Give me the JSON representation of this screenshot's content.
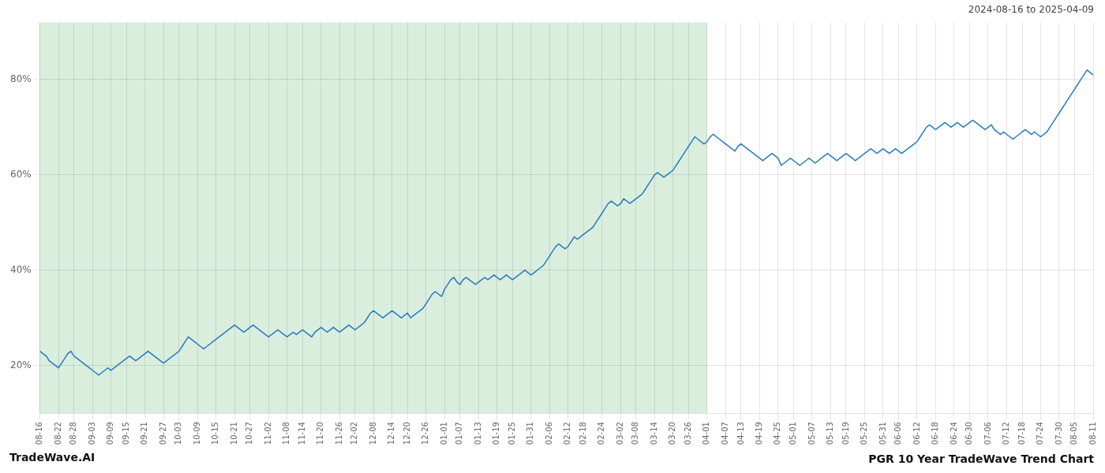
{
  "chart_data": {
    "type": "line",
    "title": "PGR 10 Year TradeWave Trend Chart",
    "subtitle": "2024-08-16 to 2025-04-09",
    "annotations": [
      "TradeWave.AI"
    ],
    "color": "#2a7abf",
    "grid": true,
    "ylim": [
      10,
      92
    ],
    "yticks": [
      {
        "value": 20,
        "label": "20%"
      },
      {
        "value": 40,
        "label": "40%"
      },
      {
        "value": 60,
        "label": "60%"
      },
      {
        "value": 80,
        "label": "80%"
      }
    ],
    "shaded_region": {
      "from": "08-16",
      "to": "04-01",
      "color": "#daeede"
    },
    "categories": [
      "08-16",
      null,
      null,
      null,
      null,
      null,
      "08-22",
      null,
      null,
      null,
      null,
      "08-28",
      null,
      null,
      null,
      null,
      null,
      "09-03",
      null,
      null,
      null,
      null,
      null,
      "09-09",
      null,
      null,
      null,
      null,
      "09-15",
      null,
      null,
      null,
      null,
      null,
      "09-21",
      null,
      null,
      null,
      null,
      null,
      "09-27",
      null,
      null,
      null,
      null,
      "10-03",
      null,
      null,
      null,
      null,
      null,
      "10-09",
      null,
      null,
      null,
      null,
      null,
      "10-15",
      null,
      null,
      null,
      null,
      null,
      "10-21",
      null,
      null,
      null,
      null,
      "10-27",
      null,
      null,
      null,
      null,
      null,
      "11-02",
      null,
      null,
      null,
      null,
      null,
      "11-08",
      null,
      null,
      null,
      null,
      "11-14",
      null,
      null,
      null,
      null,
      null,
      "11-20",
      null,
      null,
      null,
      null,
      null,
      "11-26",
      null,
      null,
      null,
      null,
      "12-02",
      null,
      null,
      null,
      null,
      null,
      "12-08",
      null,
      null,
      null,
      null,
      null,
      "12-14",
      null,
      null,
      null,
      null,
      "12-20",
      null,
      null,
      null,
      null,
      null,
      "12-26",
      null,
      null,
      null,
      null,
      null,
      "01-01",
      null,
      null,
      null,
      null,
      "01-07",
      null,
      null,
      null,
      null,
      null,
      "01-13",
      null,
      null,
      null,
      null,
      null,
      "01-19",
      null,
      null,
      null,
      null,
      "01-25",
      null,
      null,
      null,
      null,
      null,
      "01-31",
      null,
      null,
      null,
      null,
      null,
      "02-06",
      null,
      null,
      null,
      null,
      null,
      "02-12",
      null,
      null,
      null,
      null,
      "02-18",
      null,
      null,
      null,
      null,
      null,
      "02-24",
      null,
      null,
      null,
      null,
      null,
      "03-02",
      null,
      null,
      null,
      null,
      "03-08",
      null,
      null,
      null,
      null,
      null,
      "03-14",
      null,
      null,
      null,
      null,
      null,
      "03-20",
      null,
      null,
      null,
      null,
      "03-26",
      null,
      null,
      null,
      null,
      null,
      "04-01",
      null,
      null,
      null,
      null,
      null,
      "04-07",
      null,
      null,
      null,
      null,
      "04-13",
      null,
      null,
      null,
      null,
      null,
      "04-19",
      null,
      null,
      null,
      null,
      null,
      "04-25",
      null,
      null,
      null,
      null,
      "05-01",
      null,
      null,
      null,
      null,
      null,
      "05-07",
      null,
      null,
      null,
      null,
      null,
      "05-13",
      null,
      null,
      null,
      null,
      "05-19",
      null,
      null,
      null,
      null,
      null,
      "05-25",
      null,
      null,
      null,
      null,
      null,
      "05-31",
      null,
      null,
      null,
      null,
      "06-06",
      null,
      null,
      null,
      null,
      null,
      "06-12",
      null,
      null,
      null,
      null,
      null,
      "06-18",
      null,
      null,
      null,
      null,
      null,
      "06-24",
      null,
      null,
      null,
      null,
      "06-30",
      null,
      null,
      null,
      null,
      null,
      "07-06",
      null,
      null,
      null,
      null,
      null,
      "07-12",
      null,
      null,
      null,
      null,
      "07-18",
      null,
      null,
      null,
      null,
      null,
      "07-24",
      null,
      null,
      null,
      null,
      null,
      "07-30",
      null,
      null,
      null,
      null,
      "08-05",
      null,
      null,
      null,
      null,
      null,
      "08-11"
    ],
    "values": [
      23.0,
      22.5,
      22.0,
      21.0,
      20.5,
      20.0,
      19.5,
      20.5,
      21.5,
      22.5,
      23.0,
      22.0,
      21.5,
      21.0,
      20.5,
      20.0,
      19.5,
      19.0,
      18.5,
      18.0,
      18.5,
      19.0,
      19.5,
      19.0,
      19.5,
      20.0,
      20.5,
      21.0,
      21.5,
      22.0,
      21.5,
      21.0,
      21.5,
      22.0,
      22.5,
      23.0,
      22.5,
      22.0,
      21.5,
      21.0,
      20.5,
      21.0,
      21.5,
      22.0,
      22.5,
      23.0,
      24.0,
      25.0,
      26.0,
      25.5,
      25.0,
      24.5,
      24.0,
      23.5,
      24.0,
      24.5,
      25.0,
      25.5,
      26.0,
      26.5,
      27.0,
      27.5,
      28.0,
      28.5,
      28.0,
      27.5,
      27.0,
      27.5,
      28.0,
      28.5,
      28.0,
      27.5,
      27.0,
      26.5,
      26.0,
      26.5,
      27.0,
      27.5,
      27.0,
      26.5,
      26.0,
      26.5,
      27.0,
      26.5,
      27.0,
      27.5,
      27.0,
      26.5,
      26.0,
      27.0,
      27.5,
      28.0,
      27.5,
      27.0,
      27.5,
      28.0,
      27.5,
      27.0,
      27.5,
      28.0,
      28.5,
      28.0,
      27.5,
      28.0,
      28.5,
      29.0,
      30.0,
      31.0,
      31.5,
      31.0,
      30.5,
      30.0,
      30.5,
      31.0,
      31.5,
      31.0,
      30.5,
      30.0,
      30.5,
      31.0,
      30.0,
      30.5,
      31.0,
      31.5,
      32.0,
      33.0,
      34.0,
      35.0,
      35.5,
      35.0,
      34.5,
      36.0,
      37.0,
      38.0,
      38.5,
      37.5,
      37.0,
      38.0,
      38.5,
      38.0,
      37.5,
      37.0,
      37.5,
      38.0,
      38.5,
      38.0,
      38.5,
      39.0,
      38.5,
      38.0,
      38.5,
      39.0,
      38.5,
      38.0,
      38.5,
      39.0,
      39.5,
      40.0,
      39.5,
      39.0,
      39.5,
      40.0,
      40.5,
      41.0,
      42.0,
      43.0,
      44.0,
      45.0,
      45.5,
      45.0,
      44.5,
      45.0,
      46.0,
      47.0,
      46.5,
      47.0,
      47.5,
      48.0,
      48.5,
      49.0,
      50.0,
      51.0,
      52.0,
      53.0,
      54.0,
      54.5,
      54.0,
      53.5,
      54.0,
      55.0,
      54.5,
      54.0,
      54.5,
      55.0,
      55.5,
      56.0,
      57.0,
      58.0,
      59.0,
      60.0,
      60.5,
      60.0,
      59.5,
      60.0,
      60.5,
      61.0,
      62.0,
      63.0,
      64.0,
      65.0,
      66.0,
      67.0,
      68.0,
      67.5,
      67.0,
      66.5,
      67.0,
      68.0,
      68.5,
      68.0,
      67.5,
      67.0,
      66.5,
      66.0,
      65.5,
      65.0,
      66.0,
      66.5,
      66.0,
      65.5,
      65.0,
      64.5,
      64.0,
      63.5,
      63.0,
      63.5,
      64.0,
      64.5,
      64.0,
      63.5,
      62.0,
      62.5,
      63.0,
      63.5,
      63.0,
      62.5,
      62.0,
      62.5,
      63.0,
      63.5,
      63.0,
      62.5,
      63.0,
      63.5,
      64.0,
      64.5,
      64.0,
      63.5,
      63.0,
      63.5,
      64.0,
      64.5,
      64.0,
      63.5,
      63.0,
      63.5,
      64.0,
      64.5,
      65.0,
      65.5,
      65.0,
      64.5,
      65.0,
      65.5,
      65.0,
      64.5,
      65.0,
      65.5,
      65.0,
      64.5,
      65.0,
      65.5,
      66.0,
      66.5,
      67.0,
      68.0,
      69.0,
      70.0,
      70.5,
      70.0,
      69.5,
      70.0,
      70.5,
      71.0,
      70.5,
      70.0,
      70.5,
      71.0,
      70.5,
      70.0,
      70.5,
      71.0,
      71.5,
      71.0,
      70.5,
      70.0,
      69.5,
      70.0,
      70.5,
      69.5,
      69.0,
      68.5,
      69.0,
      68.5,
      68.0,
      67.5,
      68.0,
      68.5,
      69.0,
      69.5,
      69.0,
      68.5,
      69.0,
      68.5,
      68.0,
      68.5,
      69.0,
      70.0,
      71.0,
      72.0,
      73.0,
      74.0,
      75.0,
      76.0,
      77.0,
      78.0,
      79.0,
      80.0,
      81.0,
      82.0,
      81.5,
      81.0
    ]
  }
}
